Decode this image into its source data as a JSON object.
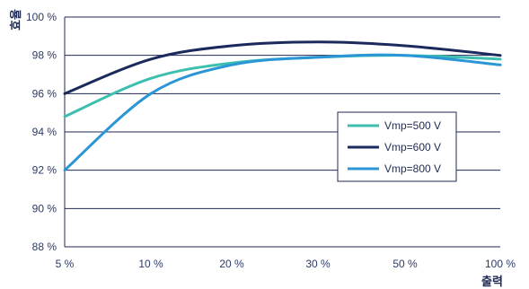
{
  "chart_data": {
    "type": "line",
    "xlabel": "출력",
    "ylabel": "효율",
    "x": [
      "5 %",
      "10 %",
      "20 %",
      "30 %",
      "50 %",
      "100 %"
    ],
    "y_ticks": [
      "88 %",
      "90 %",
      "92 %",
      "94 %",
      "96 %",
      "98 %",
      "100 %"
    ],
    "ylim": [
      88,
      100
    ],
    "grid": "horizontal",
    "legend_position": "center-right",
    "series": [
      {
        "name": "Vmp=500 V",
        "color": "#3dbfb0",
        "values": [
          94.8,
          96.8,
          97.6,
          97.9,
          98.0,
          97.8
        ]
      },
      {
        "name": "Vmp=600 V",
        "color": "#1b2a5c",
        "values": [
          96.0,
          97.8,
          98.5,
          98.7,
          98.5,
          98.0
        ]
      },
      {
        "name": "Vmp=800 V",
        "color": "#2a96d6",
        "values": [
          92.0,
          96.0,
          97.5,
          97.9,
          98.0,
          97.5
        ]
      }
    ]
  }
}
